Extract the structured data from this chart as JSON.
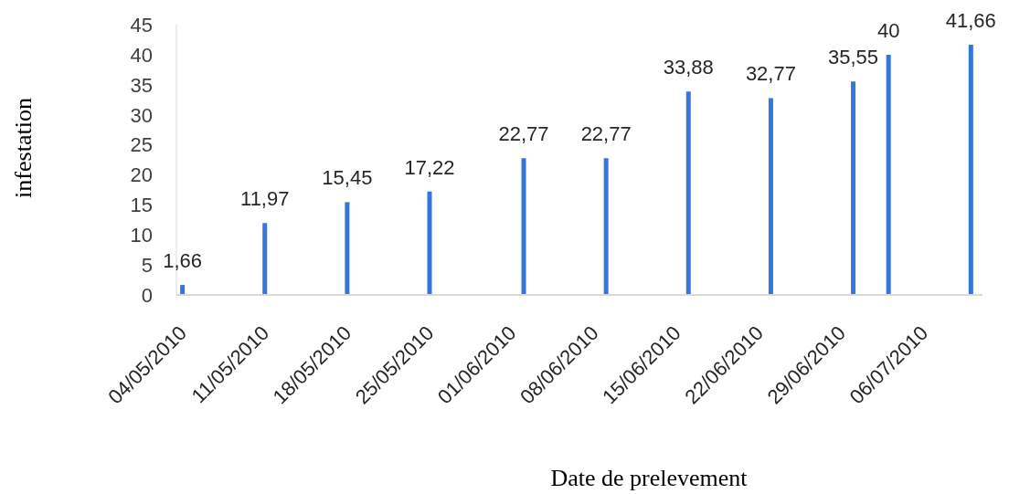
{
  "chart_data": {
    "type": "bar",
    "xlabel": "Date de prelevement",
    "ylabel": "infestation",
    "x": [
      "2010-05-04",
      "2010-05-11",
      "2010-05-18",
      "2010-05-25",
      "2010-06-02",
      "2010-06-09",
      "2010-06-16",
      "2010-06-23",
      "2010-06-30",
      "2010-07-03",
      "2010-07-10"
    ],
    "values": [
      1.66,
      11.97,
      15.45,
      17.22,
      22.77,
      22.77,
      33.88,
      32.77,
      35.55,
      40,
      41.66
    ],
    "value_labels": [
      "1,66",
      "11,97",
      "15,45",
      "17,22",
      "22,77",
      "22,77",
      "33,88",
      "32,77",
      "35,55",
      "40",
      "41,66"
    ],
    "color": "#3476dc",
    "xlim": [
      "2010-05-03T12:00",
      "2010-07-11T00:00"
    ],
    "xticks": [
      {
        "value": "2010-05-04",
        "label": "04/05/2010"
      },
      {
        "value": "2010-05-11",
        "label": "11/05/2010"
      },
      {
        "value": "2010-05-18",
        "label": "18/05/2010"
      },
      {
        "value": "2010-05-25",
        "label": "25/05/2010"
      },
      {
        "value": "2010-06-01",
        "label": "01/06/2010"
      },
      {
        "value": "2010-06-08",
        "label": "08/06/2010"
      },
      {
        "value": "2010-06-15",
        "label": "15/06/2010"
      },
      {
        "value": "2010-06-22",
        "label": "22/06/2010"
      },
      {
        "value": "2010-06-29",
        "label": "29/06/2010"
      },
      {
        "value": "2010-07-06",
        "label": "06/07/2010"
      }
    ],
    "ylim": [
      0,
      45
    ],
    "yticks": [
      0,
      5,
      10,
      15,
      20,
      25,
      30,
      35,
      40,
      45
    ]
  }
}
